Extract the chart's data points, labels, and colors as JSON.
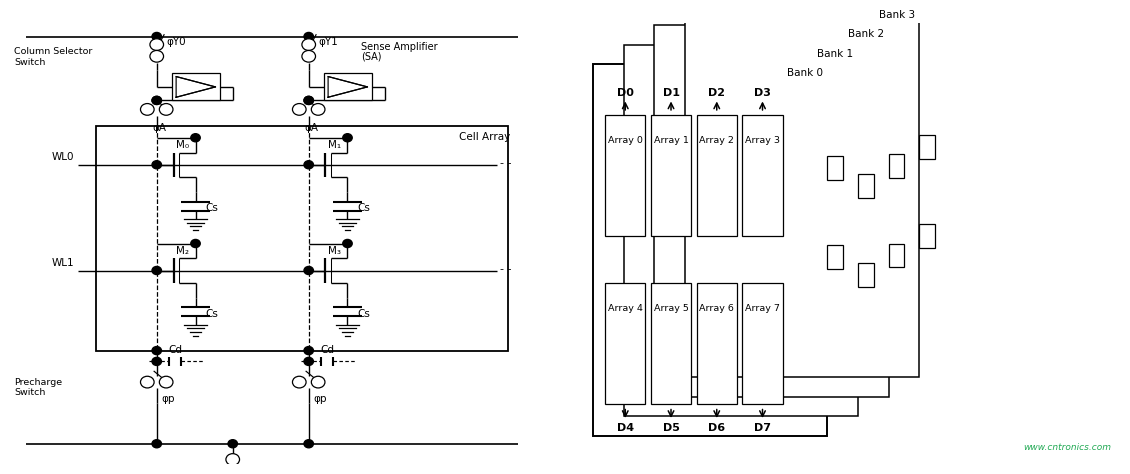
{
  "bg_color": "#ffffff",
  "line_color": "#000000",
  "text_color": "#000000",
  "green_color": "#22aa55",
  "fig_width": 11.27,
  "fig_height": 4.5,
  "left": {
    "col_sel": "Column Selector\nSwitch",
    "phi_y0": "φY0",
    "phi_y1": "φY1",
    "sense_amp_1": "Sense Amplifier",
    "sense_amp_2": "(SA)",
    "phi_a": "φA",
    "cell_array": "Cell Array",
    "wl0": "WL0",
    "wl1": "WL1",
    "m0": "M₀",
    "m1": "M₁",
    "m2": "M₂",
    "m3": "M₃",
    "cs": "Cs",
    "cd": "Cd",
    "precharge": "Precharge\nSwitch",
    "phi_p": "φp"
  },
  "right": {
    "bank_labels": [
      "Bank 0",
      "Bank 1",
      "Bank 2",
      "Bank 3"
    ],
    "top_arrays": [
      "Array 0",
      "Array 1",
      "Array 2",
      "Array 3"
    ],
    "bot_arrays": [
      "Array 4",
      "Array 5",
      "Array 6",
      "Array 7"
    ],
    "top_data": [
      "D0",
      "D1",
      "D2",
      "D3"
    ],
    "bot_data": [
      "D4",
      "D5",
      "D6",
      "D7"
    ]
  },
  "watermark": "www.cntronics.com"
}
